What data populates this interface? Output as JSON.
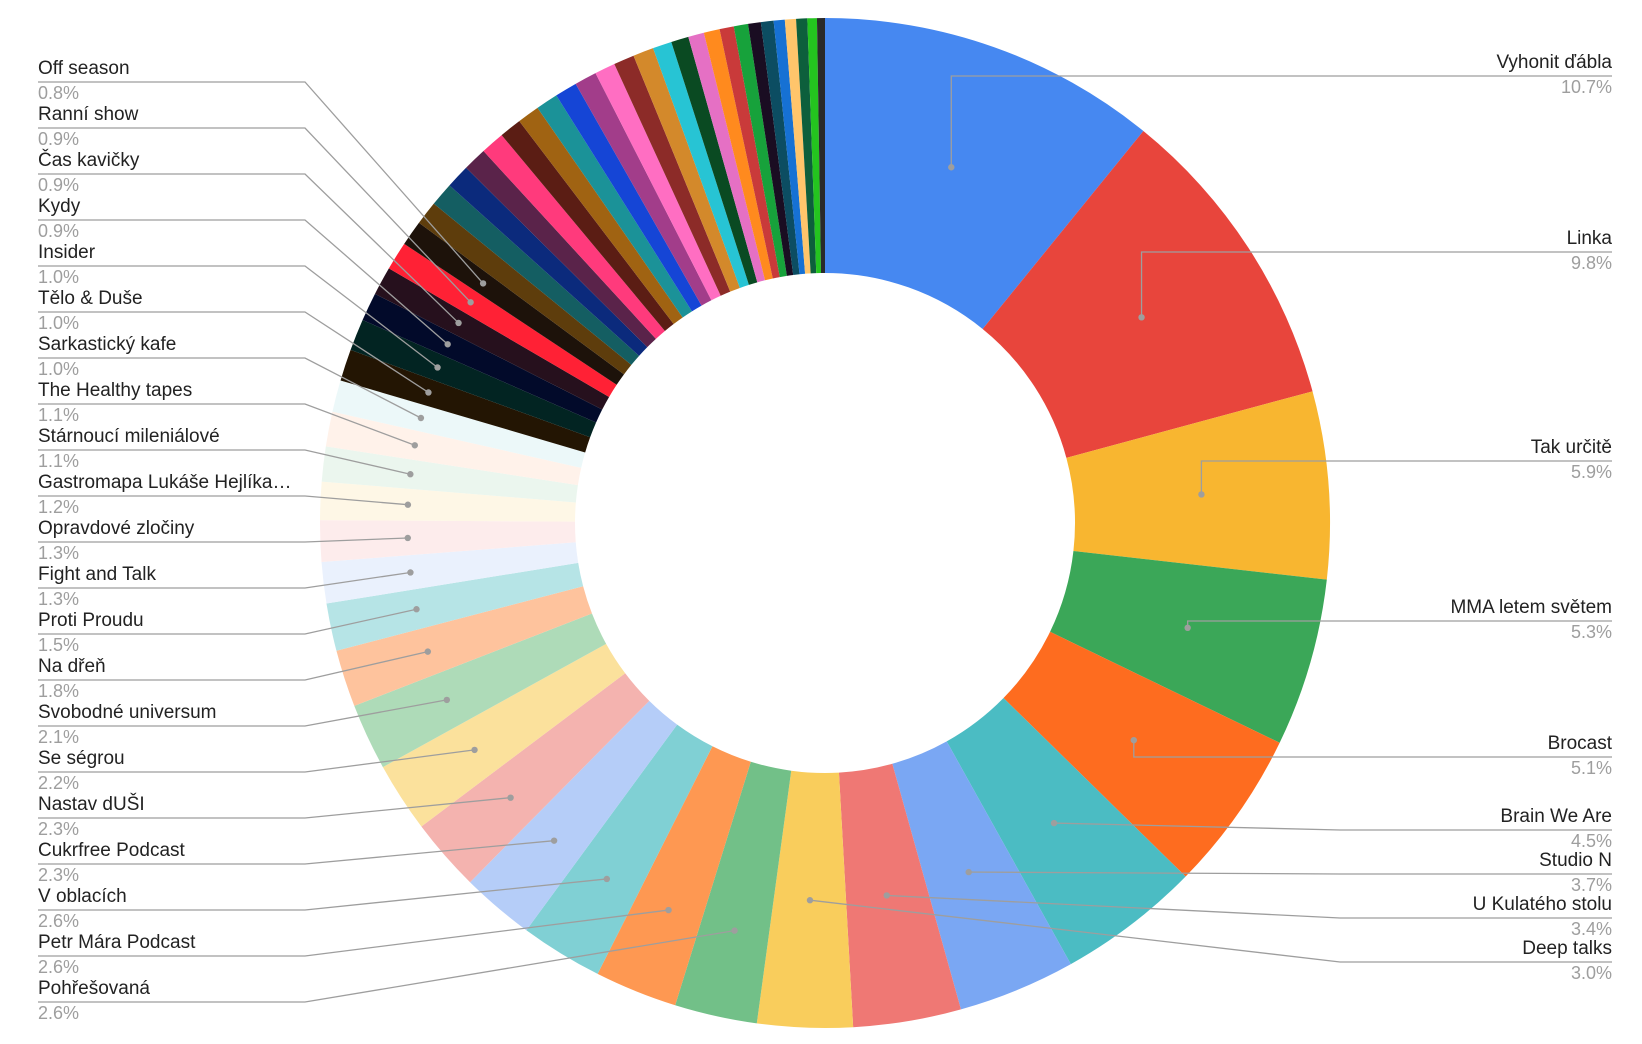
{
  "chart_data": {
    "type": "pie",
    "variant": "donut",
    "legend": "labels with leader lines",
    "slices": [
      {
        "label": "Vyhonit ďábla",
        "pct": "10.7%",
        "value": 10.7,
        "color": "#4688f1"
      },
      {
        "label": "Linka",
        "pct": "9.8%",
        "value": 9.8,
        "color": "#e8453c"
      },
      {
        "label": "Tak určitě",
        "pct": "5.9%",
        "value": 5.9,
        "color": "#f8b630"
      },
      {
        "label": "MMA letem světem",
        "pct": "5.3%",
        "value": 5.3,
        "color": "#3ba758"
      },
      {
        "label": "Brocast",
        "pct": "5.1%",
        "value": 5.1,
        "color": "#fe6c1f"
      },
      {
        "label": "Brain We Are",
        "pct": "4.5%",
        "value": 4.5,
        "color": "#4bbcc3"
      },
      {
        "label": "Studio N",
        "pct": "3.7%",
        "value": 3.7,
        "color": "#7aa7f3"
      },
      {
        "label": "U Kulatého stolu",
        "pct": "3.4%",
        "value": 3.4,
        "color": "#ef7874"
      },
      {
        "label": "Deep talks",
        "pct": "3.0%",
        "value": 3.0,
        "color": "#f9cd5c"
      },
      {
        "label": "Pohřešovaná",
        "pct": "2.6%",
        "value": 2.6,
        "color": "#72c088"
      },
      {
        "label": "Petr Mára Podcast",
        "pct": "2.6%",
        "value": 2.6,
        "color": "#fe9852"
      },
      {
        "label": "V oblacích",
        "pct": "2.6%",
        "value": 2.6,
        "color": "#80d0d4"
      },
      {
        "label": "Cukrfree Podcast",
        "pct": "2.3%",
        "value": 2.3,
        "color": "#b5cdf8"
      },
      {
        "label": "Nastav dUŠI",
        "pct": "2.3%",
        "value": 2.3,
        "color": "#f4b3af"
      },
      {
        "label": "Se ségrou",
        "pct": "2.2%",
        "value": 2.2,
        "color": "#fbe19c"
      },
      {
        "label": "Svobodné universum",
        "pct": "2.1%",
        "value": 2.1,
        "color": "#aedbb8"
      },
      {
        "label": "Na dřeň",
        "pct": "1.8%",
        "value": 1.8,
        "color": "#fec39d"
      },
      {
        "label": "Proti Proudu",
        "pct": "1.5%",
        "value": 1.5,
        "color": "#b6e4e6"
      },
      {
        "label": "Fight and Talk",
        "pct": "1.3%",
        "value": 1.3,
        "color": "#eaf1fd"
      },
      {
        "label": "Opravdové zločiny",
        "pct": "1.3%",
        "value": 1.3,
        "color": "#fdecec"
      },
      {
        "label": "Gastromapa Lukáše Hejlíka…",
        "pct": "1.2%",
        "value": 1.2,
        "color": "#fef7e6"
      },
      {
        "label": "Stárnoucí mileniálové",
        "pct": "1.1%",
        "value": 1.1,
        "color": "#ebf6ee"
      },
      {
        "label": "The Healthy tapes",
        "pct": "1.1%",
        "value": 1.1,
        "color": "#fff2ea"
      },
      {
        "label": "Sarkastický kafe",
        "pct": "1.0%",
        "value": 1.0,
        "color": "#ecf8f9"
      },
      {
        "label": "Tělo & Duše",
        "pct": "1.0%",
        "value": 1.0,
        "color": "#231503"
      },
      {
        "label": "Insider",
        "pct": "1.0%",
        "value": 1.0,
        "color": "#022422"
      },
      {
        "label": "Kydy",
        "pct": "0.9%",
        "value": 0.9,
        "color": "#020a2a"
      },
      {
        "label": "Čas kavičky",
        "pct": "0.9%",
        "value": 0.9,
        "color": "#26101d"
      },
      {
        "label": "Ranní show",
        "pct": "0.9%",
        "value": 0.9,
        "color": "#ff2135"
      },
      {
        "label": "Off season",
        "pct": "0.8%",
        "value": 0.8,
        "color": "#1d120a"
      },
      {
        "value": 0.75,
        "color": "#5e3d0c"
      },
      {
        "value": 0.75,
        "color": "#145e62"
      },
      {
        "value": 0.75,
        "color": "#0b2a7c"
      },
      {
        "value": 0.75,
        "color": "#5a234a"
      },
      {
        "value": 0.75,
        "color": "#ff3a7c"
      },
      {
        "value": 0.7,
        "color": "#5b1d14"
      },
      {
        "value": 0.7,
        "color": "#a06312"
      },
      {
        "value": 0.7,
        "color": "#1b9298"
      },
      {
        "value": 0.7,
        "color": "#1545d6"
      },
      {
        "value": 0.7,
        "color": "#a23d8a"
      },
      {
        "value": 0.65,
        "color": "#ff6ec2"
      },
      {
        "value": 0.65,
        "color": "#8c2b28"
      },
      {
        "value": 0.65,
        "color": "#d3892b"
      },
      {
        "value": 0.6,
        "color": "#27c4d4"
      },
      {
        "value": 0.55,
        "color": "#0a4a22"
      },
      {
        "value": 0.5,
        "color": "#e570c4"
      },
      {
        "value": 0.5,
        "color": "#ff8a1e"
      },
      {
        "value": 0.45,
        "color": "#c93a3a"
      },
      {
        "value": 0.45,
        "color": "#17a23b"
      },
      {
        "value": 0.4,
        "color": "#1a0d22"
      },
      {
        "value": 0.4,
        "color": "#0c4d62"
      },
      {
        "value": 0.35,
        "color": "#1671d4"
      },
      {
        "value": 0.35,
        "color": "#ffc56b"
      },
      {
        "value": 0.35,
        "color": "#0d5f3c"
      },
      {
        "value": 0.3,
        "color": "#24c41f"
      },
      {
        "value": 0.25,
        "color": "#2a2a2a"
      }
    ]
  }
}
